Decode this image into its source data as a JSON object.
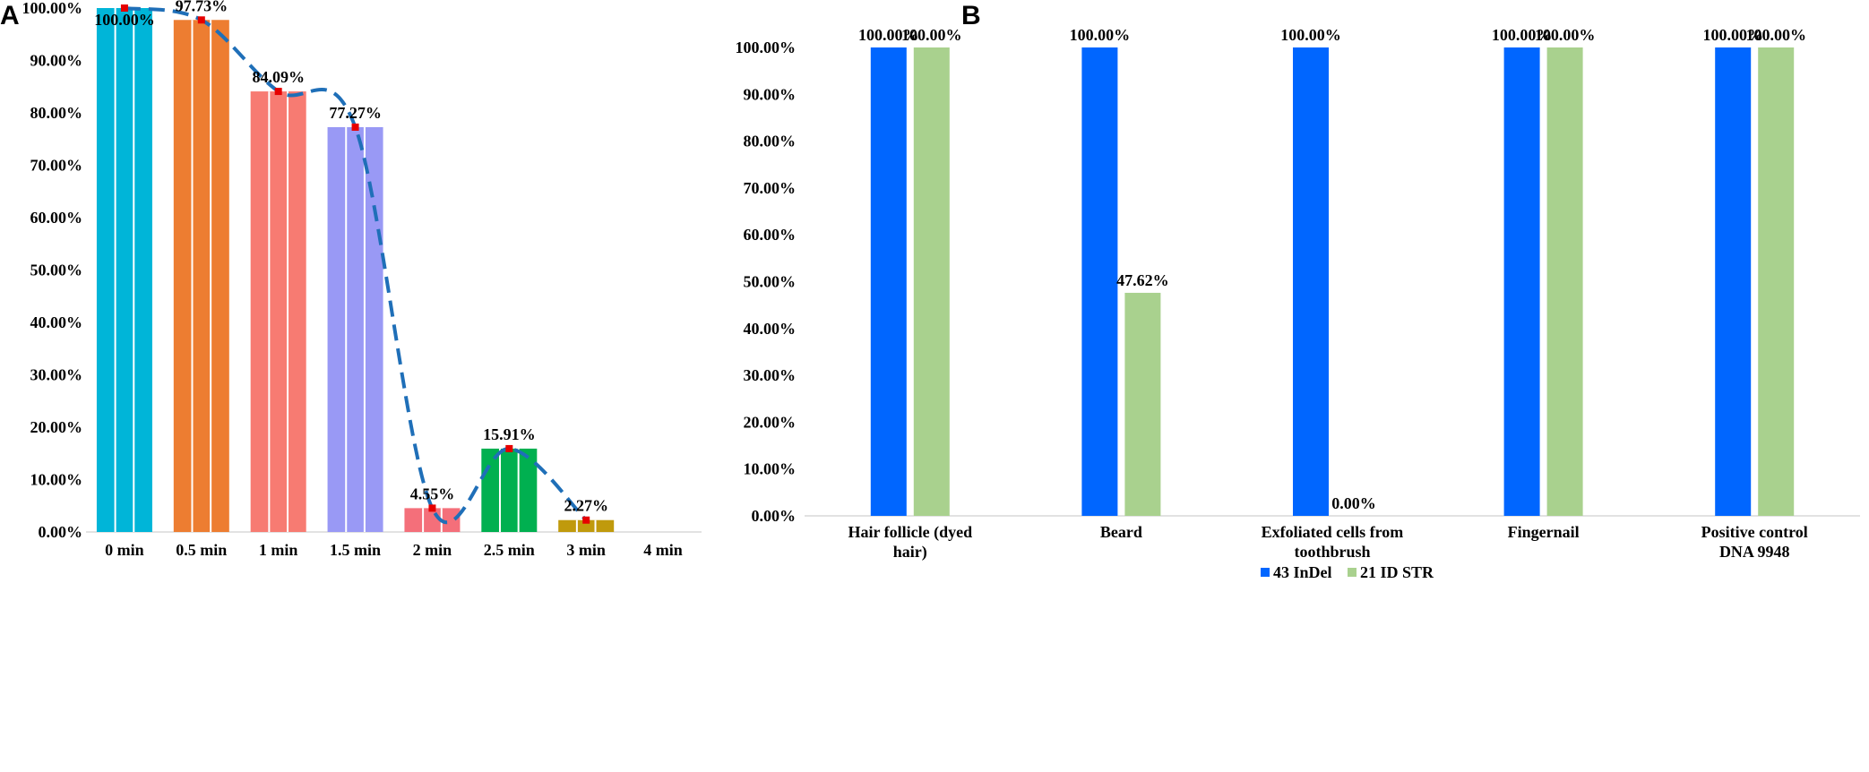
{
  "panels": {
    "a": "A",
    "b": "B"
  },
  "chart_data": [
    {
      "id": "A",
      "type": "bar",
      "title": "",
      "xlabel": "",
      "ylabel": "",
      "ylim": [
        0,
        100
      ],
      "yticks": [
        0,
        10,
        20,
        30,
        40,
        50,
        60,
        70,
        80,
        90,
        100
      ],
      "ytick_labels": [
        "0.00%",
        "10.00%",
        "20.00%",
        "30.00%",
        "40.00%",
        "50.00%",
        "60.00%",
        "70.00%",
        "80.00%",
        "90.00%",
        "100.00%"
      ],
      "categories": [
        "0 min",
        "0.5 min",
        "1 min",
        "1.5 min",
        "2 min",
        "2.5 min",
        "3 min",
        "4 min"
      ],
      "values": [
        100.0,
        97.73,
        84.09,
        77.27,
        4.55,
        15.91,
        2.27,
        null
      ],
      "value_labels": [
        "100.00%",
        "97.73%",
        "84.09%",
        "77.27%",
        "4.55%",
        "15.91%",
        "2.27%",
        ""
      ],
      "colors": [
        "#00b5d8",
        "#ed7d31",
        "#f77b72",
        "#9999f5",
        "#f46f7a",
        "#00b050",
        "#c09a0c",
        "#ffffff"
      ],
      "trend_line": {
        "style": "dashed",
        "color": "#1f6fb8",
        "marker_color": "#e60000"
      }
    },
    {
      "id": "B",
      "type": "bar",
      "title": "",
      "xlabel": "",
      "ylabel": "",
      "ylim": [
        0,
        100
      ],
      "yticks": [
        0,
        10,
        20,
        30,
        40,
        50,
        60,
        70,
        80,
        90,
        100
      ],
      "ytick_labels": [
        "0.00%",
        "10.00%",
        "20.00%",
        "30.00%",
        "40.00%",
        "50.00%",
        "60.00%",
        "70.00%",
        "80.00%",
        "90.00%",
        "100.00%"
      ],
      "categories": [
        [
          "Hair follicle (dyed",
          "hair)"
        ],
        [
          "Beard"
        ],
        [
          "Exfoliated cells from",
          "toothbrush"
        ],
        [
          "Fingernail"
        ],
        [
          "Positive control",
          "DNA 9948"
        ]
      ],
      "series": [
        {
          "name": "43 InDel",
          "color": "#0066ff",
          "values": [
            100,
            100,
            100,
            100,
            100
          ],
          "value_labels": [
            "100.00%",
            "100.00%",
            "100.00%",
            "100.00%",
            "100.00%"
          ]
        },
        {
          "name": "21 ID STR",
          "color": "#a9d18e",
          "values": [
            100,
            47.62,
            0,
            100,
            100
          ],
          "value_labels": [
            "100.00%",
            "47.62%",
            "0.00%",
            "100.00%",
            "100.00%"
          ]
        }
      ],
      "legend": "bottom-center"
    }
  ]
}
